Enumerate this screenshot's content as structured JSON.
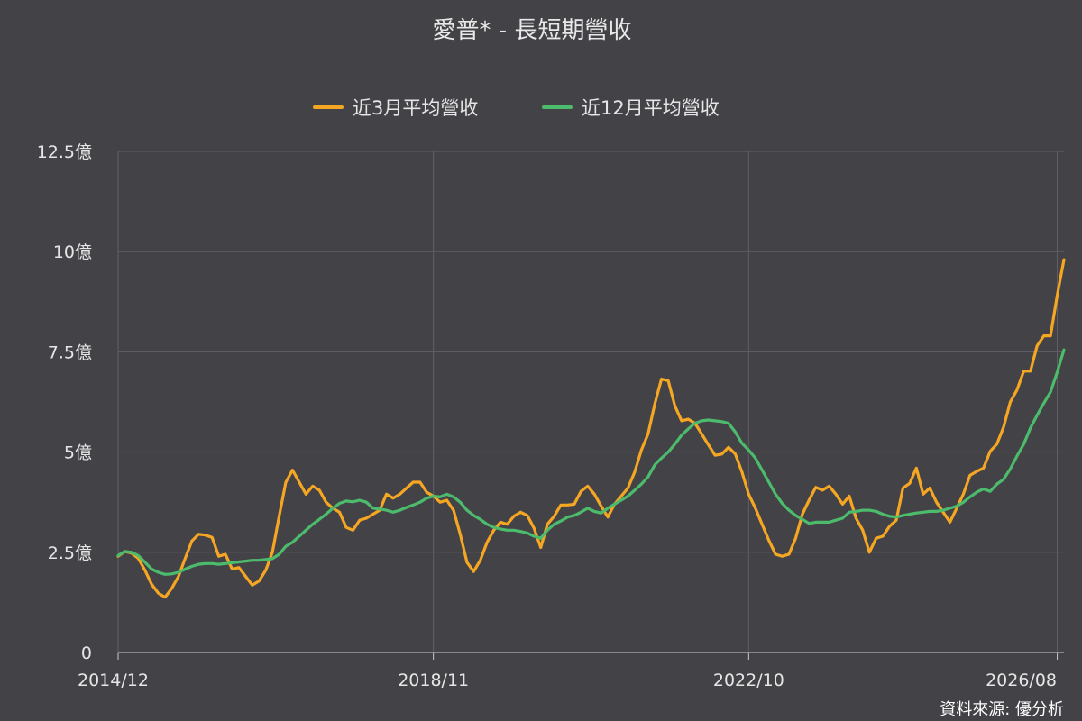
{
  "chart_data": {
    "type": "line",
    "title": "愛普* - 長短期營收",
    "source": "資料來源: 優分析",
    "y_unit": "億",
    "ylim": [
      0,
      12.5
    ],
    "y_ticks": [
      "0",
      "2.5億",
      "5億",
      "7.5億",
      "10億",
      "12.5億"
    ],
    "y_tick_values": [
      0,
      2.5,
      5,
      7.5,
      10,
      12.5
    ],
    "x_tick_labels": [
      "2014/12",
      "2018/11",
      "2022/10",
      "2026/08"
    ],
    "x_tick_index": [
      0,
      47,
      94,
      140
    ],
    "grid": true,
    "legend_position": "top-center",
    "series": [
      {
        "name": "近3月平均營收",
        "color": "#F5A623",
        "values": [
          2.4,
          2.52,
          2.48,
          2.35,
          2.05,
          1.7,
          1.48,
          1.38,
          1.6,
          1.9,
          2.35,
          2.78,
          2.95,
          2.93,
          2.87,
          2.4,
          2.45,
          2.08,
          2.12,
          1.9,
          1.68,
          1.78,
          2.05,
          2.5,
          3.4,
          4.25,
          4.55,
          4.25,
          3.95,
          4.15,
          4.05,
          3.75,
          3.6,
          3.5,
          3.12,
          3.05,
          3.3,
          3.35,
          3.45,
          3.55,
          3.95,
          3.85,
          3.95,
          4.1,
          4.25,
          4.25,
          4.0,
          3.9,
          3.75,
          3.8,
          3.55,
          2.95,
          2.25,
          2.02,
          2.3,
          2.75,
          3.05,
          3.25,
          3.2,
          3.4,
          3.5,
          3.42,
          3.1,
          2.62,
          3.2,
          3.4,
          3.68,
          3.68,
          3.7,
          4.02,
          4.15,
          3.95,
          3.65,
          3.38,
          3.7,
          3.9,
          4.1,
          4.5,
          5.05,
          5.45,
          6.2,
          6.82,
          6.78,
          6.15,
          5.78,
          5.82,
          5.72,
          5.45,
          5.18,
          4.92,
          4.95,
          5.12,
          4.95,
          4.5,
          3.95,
          3.6,
          3.2,
          2.8,
          2.45,
          2.4,
          2.45,
          2.85,
          3.45,
          3.8,
          4.12,
          4.05,
          4.15,
          3.95,
          3.7,
          3.9,
          3.35,
          3.05,
          2.5,
          2.85,
          2.9,
          3.15,
          3.3,
          4.1,
          4.22,
          4.6,
          3.95,
          4.1,
          3.75,
          3.5,
          3.25,
          3.6,
          3.95,
          4.42,
          4.52,
          4.6,
          5.02,
          5.2,
          5.62,
          6.25,
          6.55,
          7.02,
          7.02,
          7.65,
          7.9,
          7.9,
          8.92,
          9.8
        ]
      },
      {
        "name": "近12月平均營收",
        "color": "#4CBB6C",
        "values": [
          2.42,
          2.52,
          2.5,
          2.42,
          2.25,
          2.08,
          2.0,
          1.95,
          1.96,
          2.0,
          2.08,
          2.15,
          2.2,
          2.22,
          2.22,
          2.2,
          2.22,
          2.24,
          2.26,
          2.28,
          2.3,
          2.3,
          2.32,
          2.34,
          2.45,
          2.65,
          2.75,
          2.9,
          3.05,
          3.2,
          3.32,
          3.45,
          3.6,
          3.72,
          3.78,
          3.76,
          3.8,
          3.75,
          3.6,
          3.58,
          3.55,
          3.5,
          3.55,
          3.62,
          3.68,
          3.75,
          3.85,
          3.9,
          3.88,
          3.95,
          3.88,
          3.75,
          3.55,
          3.42,
          3.32,
          3.2,
          3.12,
          3.08,
          3.05,
          3.05,
          3.02,
          2.98,
          2.9,
          2.85,
          3.05,
          3.2,
          3.28,
          3.38,
          3.42,
          3.5,
          3.6,
          3.52,
          3.48,
          3.6,
          3.7,
          3.8,
          3.9,
          4.05,
          4.2,
          4.38,
          4.68,
          4.85,
          5.0,
          5.2,
          5.42,
          5.58,
          5.72,
          5.78,
          5.8,
          5.78,
          5.76,
          5.72,
          5.5,
          5.22,
          5.05,
          4.85,
          4.55,
          4.25,
          3.95,
          3.72,
          3.55,
          3.42,
          3.32,
          3.22,
          3.25,
          3.25,
          3.25,
          3.3,
          3.35,
          3.5,
          3.52,
          3.55,
          3.55,
          3.52,
          3.45,
          3.4,
          3.38,
          3.42,
          3.45,
          3.48,
          3.5,
          3.52,
          3.52,
          3.55,
          3.6,
          3.65,
          3.75,
          3.88,
          4.0,
          4.08,
          4.02,
          4.2,
          4.32,
          4.58,
          4.9,
          5.2,
          5.6,
          5.92,
          6.22,
          6.5,
          7.0,
          7.55
        ]
      }
    ]
  }
}
